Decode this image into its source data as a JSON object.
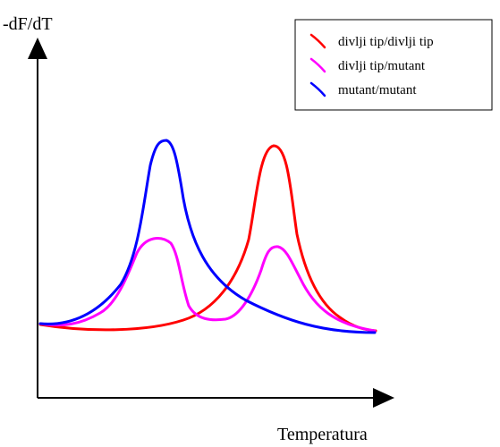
{
  "chart_data": {
    "type": "line",
    "title": "",
    "xlabel": "Temperatura",
    "ylabel": "-dF/dT",
    "grid": false,
    "axis_ticks": false,
    "legend_position": "top-right",
    "series": [
      {
        "name": "divlji tip/divlji tip",
        "color": "#ff0000",
        "shape": "single-peak",
        "peak_position": "right"
      },
      {
        "name": "divlji tip/mutant",
        "color": "#ff00ff",
        "shape": "double-peak",
        "peak_position": "left and right"
      },
      {
        "name": "mutant/mutant",
        "color": "#0000ff",
        "shape": "single-peak",
        "peak_position": "left"
      }
    ]
  }
}
